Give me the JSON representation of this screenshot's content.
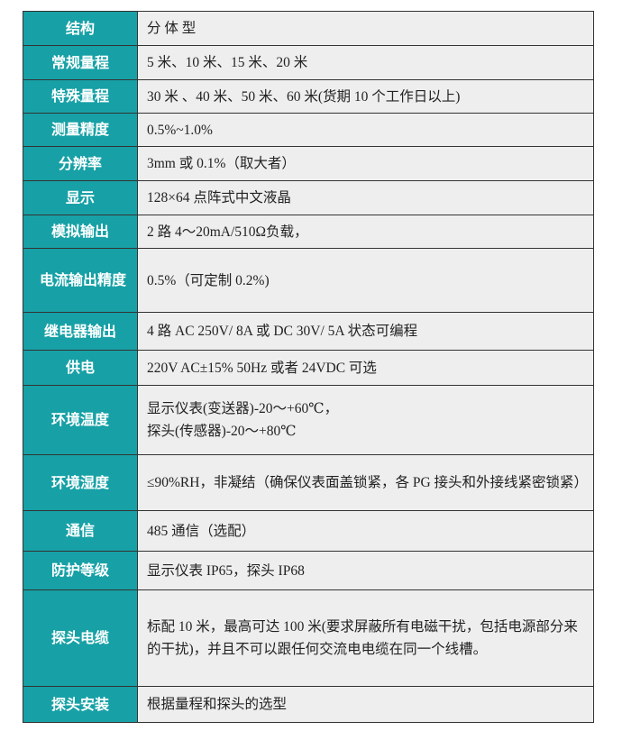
{
  "rows": [
    {
      "label": "结构",
      "value": [
        "分 体 型"
      ]
    },
    {
      "label": "常规量程",
      "value": [
        "5 米、10 米、15 米、20 米"
      ]
    },
    {
      "label": "特殊量程",
      "value": [
        "30 米 、40 米、50 米、60 米(货期 10 个工作日以上)"
      ]
    },
    {
      "label": "测量精度",
      "value": [
        "0.5%~1.0%"
      ]
    },
    {
      "label": "分辨率",
      "value": [
        "3mm 或 0.1%（取大者）"
      ]
    },
    {
      "label": "显示",
      "value": [
        "128×64 点阵式中文液晶"
      ]
    },
    {
      "label": "模拟输出",
      "value": [
        "2 路 4～20mA/510Ω负载，"
      ]
    },
    {
      "label": "电流输出精度",
      "value": [
        "0.5%（可定制 0.2%)"
      ]
    },
    {
      "label": "继电器输出",
      "value": [
        "4 路 AC 250V/ 8A 或 DC 30V/ 5A 状态可编程"
      ]
    },
    {
      "label": "供电",
      "value": [
        "220V AC±15%   50Hz 或者 24VDC  可选"
      ]
    },
    {
      "label": "环境温度",
      "value": [
        "显示仪表(变送器)-20～+60℃，",
        "探头(传感器)-20～+80℃"
      ]
    },
    {
      "label": "环境湿度",
      "value": [
        "≤90%RH，非凝结（确保仪表面盖锁紧，各 PG 接头和外接线紧密锁紧）"
      ]
    },
    {
      "label": "通信",
      "value": [
        "485 通信（选配）"
      ]
    },
    {
      "label": "防护等级",
      "value": [
        "显示仪表 IP65，探头 IP68"
      ]
    },
    {
      "label": "探头电缆",
      "value": [
        "标配 10 米，最高可达 100 米(要求屏蔽所有电磁干扰，包括电源部分来的干扰)，并且不可以跟任何交流电电缆在同一个线槽。"
      ]
    },
    {
      "label": "探头安装",
      "value": [
        "根据量程和探头的选型"
      ]
    }
  ]
}
